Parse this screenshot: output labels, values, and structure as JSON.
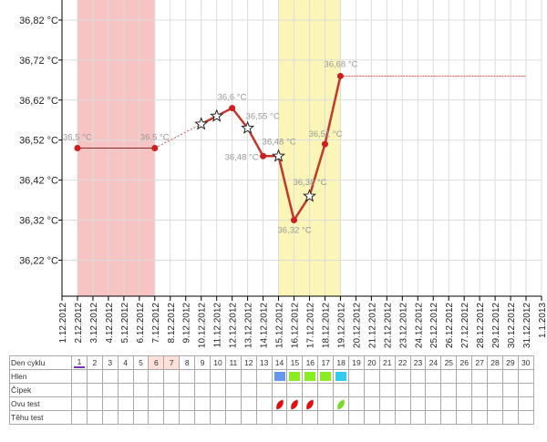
{
  "chart_data": {
    "type": "line",
    "ylabel_unit": "°C",
    "y_ticks": [
      "36,82 °C",
      "36,72 °C",
      "36,62 °C",
      "36,52 °C",
      "36,42 °C",
      "36,32 °C",
      "36,22 °C"
    ],
    "ylim": [
      36.13,
      36.87
    ],
    "x_labels": [
      "1.12.2012",
      "2.12.2012",
      "3.12.2012",
      "4.12.2012",
      "5.12.2012",
      "6.12.2012",
      "7.12.2012",
      "8.12.2012",
      "9.12.2012",
      "10.12.2012",
      "11.12.2012",
      "12.12.2012",
      "13.12.2012",
      "14.12.2012",
      "15.12.2012",
      "16.12.2012",
      "17.12.2012",
      "18.12.2012",
      "19.12.2012",
      "20.12.2012",
      "21.12.2012",
      "22.12.2012",
      "23.12.2012",
      "24.12.2012",
      "25.12.2012",
      "26.12.2012",
      "27.12.2012",
      "28.12.2012",
      "29.12.2012",
      "30.12.2012",
      "31.12.2012",
      "1.1.2013"
    ],
    "shaded_ranges": [
      {
        "kind": "menstruation",
        "from_day": 1,
        "to_day": 6,
        "color": "#f7c3c3"
      },
      {
        "kind": "fertile",
        "from_day": 14,
        "to_day": 18,
        "color": "#fbf6b8"
      }
    ],
    "series": [
      {
        "points": [
          {
            "day": 1,
            "value": 36.5,
            "label": "36,5 °C",
            "marker": "dot"
          },
          {
            "day": 6,
            "value": 36.5,
            "label": "36,5 °C",
            "marker": "dot"
          },
          {
            "day": 9,
            "value": 36.56,
            "label": "",
            "marker": "star"
          },
          {
            "day": 10,
            "value": 36.58,
            "label": "",
            "marker": "star"
          },
          {
            "day": 11,
            "value": 36.6,
            "label": "36,6 °C",
            "marker": "dot"
          },
          {
            "day": 12,
            "value": 36.55,
            "label": "36,55 °C",
            "marker": "star"
          },
          {
            "day": 13,
            "value": 36.48,
            "label": "36,48 °C",
            "marker": "dot"
          },
          {
            "day": 14,
            "value": 36.48,
            "label": "36,48 °C",
            "marker": "star"
          },
          {
            "day": 15,
            "value": 36.32,
            "label": "36,32 °C",
            "marker": "dot"
          },
          {
            "day": 16,
            "value": 36.38,
            "label": "36,38 °C",
            "marker": "star"
          },
          {
            "day": 17,
            "value": 36.51,
            "label": "36,51 °C",
            "marker": "dot"
          },
          {
            "day": 18,
            "value": 36.68,
            "label": "36,68 °C",
            "marker": "dot"
          }
        ],
        "projection_until_day": 30
      }
    ],
    "colors": {
      "line": "#c0392b",
      "dotted": "#d9534f",
      "grid": "#dcdcdc",
      "axis": "#000000",
      "label": "#999999"
    }
  },
  "table": {
    "rows": [
      {
        "label": "Den cyklu",
        "kind": "days"
      },
      {
        "label": "Hlen",
        "kind": "mucus"
      },
      {
        "label": "Čípek",
        "kind": "empty"
      },
      {
        "label": "Ovu test",
        "kind": "ovu"
      },
      {
        "label": "Těhu test",
        "kind": "empty"
      }
    ],
    "days": [
      "1",
      "2",
      "3",
      "4",
      "5",
      "6",
      "7",
      "8",
      "9",
      "10",
      "11",
      "12",
      "13",
      "14",
      "15",
      "16",
      "17",
      "18",
      "19",
      "20",
      "21",
      "22",
      "23",
      "24",
      "25",
      "26",
      "27",
      "28",
      "29",
      "30"
    ],
    "highlighted_days": [
      6,
      7
    ],
    "today_marker_day": 1,
    "mucus": [
      {
        "day": 14,
        "color": "#6699ee"
      },
      {
        "day": 15,
        "color": "#88ee22"
      },
      {
        "day": 16,
        "color": "#88ee22"
      },
      {
        "day": 17,
        "color": "#88ee22"
      },
      {
        "day": 18,
        "color": "#33ccee"
      }
    ],
    "ovu": [
      {
        "day": 14,
        "color": "#e01010"
      },
      {
        "day": 15,
        "color": "#e01010"
      },
      {
        "day": 16,
        "color": "#e01010"
      },
      {
        "day": 18,
        "color": "#77dd22"
      }
    ]
  }
}
